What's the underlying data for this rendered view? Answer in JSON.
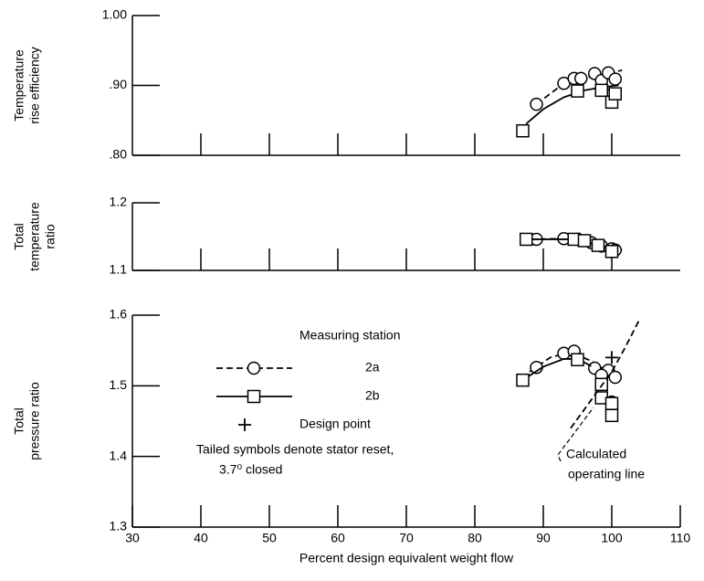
{
  "chart_data": [
    {
      "type": "scatter",
      "y_label": [
        "Temperature",
        "rise efficiency"
      ],
      "xlim": [
        30,
        110
      ],
      "xticks": [
        40,
        50,
        60,
        70,
        80,
        90,
        100
      ],
      "ylim": [
        0.8,
        1.0
      ],
      "yticks": [
        {
          "value": 0.8,
          "label": ".80"
        },
        {
          "value": 0.9,
          "label": ".90"
        },
        {
          "value": 1.0,
          "label": "1.00"
        }
      ],
      "series": [
        {
          "name": "2a",
          "marker": "circle",
          "line_style": "dashed",
          "color": "#000000",
          "x": [
            89,
            93,
            94.5,
            95.5,
            97.5,
            98.5,
            99.5,
            100.5,
            100
          ],
          "values": [
            0.873,
            0.903,
            0.91,
            0.91,
            0.917,
            0.907,
            0.918,
            0.909,
            0.887
          ],
          "curve": {
            "x": [
              89,
              93,
              96,
              99,
              101.5
            ],
            "values": [
              0.873,
              0.903,
              0.911,
              0.914,
              0.922
            ]
          }
        },
        {
          "name": "2b",
          "marker": "square",
          "line_style": "solid",
          "color": "#000000",
          "x": [
            87,
            95,
            98.5,
            100,
            100.5
          ],
          "values": [
            0.835,
            0.892,
            0.893,
            0.876,
            0.888
          ],
          "curve": {
            "x": [
              87.5,
              90,
              93,
              96,
              99,
              101
            ],
            "values": [
              0.845,
              0.866,
              0.883,
              0.893,
              0.898,
              0.9
            ]
          }
        }
      ]
    },
    {
      "type": "scatter",
      "y_label": [
        "Total",
        "temperature",
        "ratio"
      ],
      "xlim": [
        30,
        110
      ],
      "xticks": [
        40,
        50,
        60,
        70,
        80,
        90,
        100
      ],
      "ylim": [
        1.1,
        1.2
      ],
      "yticks": [
        1.1,
        1.2
      ],
      "series": [
        {
          "name": "2a",
          "marker": "circle",
          "line_style": "dashed",
          "color": "#000000",
          "x": [
            89,
            93,
            95,
            97,
            98.5,
            100,
            100.5
          ],
          "values": [
            1.146,
            1.147,
            1.146,
            1.141,
            1.136,
            1.132,
            1.13
          ],
          "curve": {
            "x": [
              88,
              93,
              96,
              99,
              101.5
            ],
            "values": [
              1.146,
              1.147,
              1.144,
              1.136,
              1.13
            ]
          }
        },
        {
          "name": "2b",
          "marker": "square",
          "line_style": "solid",
          "color": "#000000",
          "x": [
            87.5,
            94.5,
            96,
            98,
            100
          ],
          "values": [
            1.146,
            1.146,
            1.144,
            1.137,
            1.128
          ],
          "curve": {
            "x": [
              87.5,
              94,
              97,
              100.5
            ],
            "values": [
              1.146,
              1.146,
              1.14,
              1.13
            ]
          }
        }
      ]
    },
    {
      "type": "scatter",
      "y_label": [
        "Total",
        "pressure ratio"
      ],
      "x_label": "Percent design equivalent weight flow",
      "xlim": [
        30,
        110
      ],
      "xticks": [
        30,
        40,
        50,
        60,
        70,
        80,
        90,
        100,
        110
      ],
      "ylim": [
        1.3,
        1.6
      ],
      "yticks": [
        1.3,
        1.4,
        1.5,
        1.6
      ],
      "legend_title": "Measuring station",
      "series": [
        {
          "name": "2a",
          "marker": "circle",
          "line_style": "dashed",
          "color": "#000000",
          "x": [
            89,
            93,
            94.5,
            97.5,
            99.5,
            100.5,
            100,
            98.5
          ],
          "values": [
            1.526,
            1.546,
            1.549,
            1.525,
            1.522,
            1.512,
            1.477,
            1.515
          ],
          "curve": {
            "x": [
              88,
              91,
              94,
              97,
              99.5,
              101
            ],
            "values": [
              1.52,
              1.54,
              1.548,
              1.535,
              1.52,
              1.51
            ]
          }
        },
        {
          "name": "2b",
          "marker": "square",
          "line_style": "solid",
          "color": "#000000",
          "x": [
            87,
            95,
            98.5,
            98.5,
            100,
            100
          ],
          "values": [
            1.508,
            1.537,
            1.502,
            1.483,
            1.458,
            1.475
          ],
          "curve": {
            "x": [
              87,
              90,
              93,
              95,
              97
            ],
            "values": [
              1.508,
              1.527,
              1.538,
              1.538,
              1.528
            ]
          }
        },
        {
          "name": "Design point",
          "marker": "plus",
          "line_style": "none",
          "color": "#000000",
          "x": [
            100
          ],
          "values": [
            1.54
          ]
        }
      ],
      "stator_note": [
        "Tailed symbols denote stator reset,",
        "3.7⁰ closed"
      ],
      "operating_line": {
        "label": [
          "Calculated",
          "operating line"
        ],
        "x": [
          94,
          97,
          100,
          102,
          104
        ],
        "values": [
          1.44,
          1.48,
          1.52,
          1.555,
          1.593
        ]
      }
    }
  ]
}
